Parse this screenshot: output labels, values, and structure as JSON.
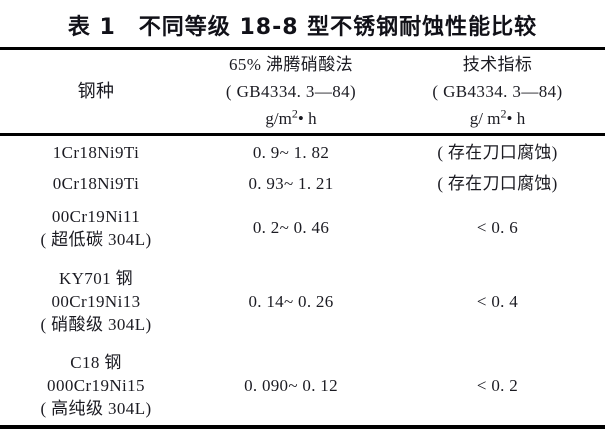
{
  "table": {
    "title": "表 1　不同等级 18-8 型不锈钢耐蚀性能比较",
    "header": {
      "steel_col": "钢种",
      "method_col": {
        "line1": "65% 沸腾硝酸法",
        "line2": "( GB4334. 3—84)",
        "unit_pre": "g/m",
        "unit_sup": "2",
        "unit_post": "• h"
      },
      "spec_col": {
        "line1": "技术指标",
        "line2": "( GB4334. 3—84)",
        "unit_pre": "g/ m",
        "unit_sup": "2",
        "unit_post": "• h"
      }
    },
    "rows": [
      {
        "name1": "1Cr18Ni9Ti",
        "value": "0. 9~ 1. 82",
        "spec": "( 存在刀口腐蚀)"
      },
      {
        "name1": "0Cr18Ni9Ti",
        "value": "0. 93~ 1. 21",
        "spec": "( 存在刀口腐蚀)"
      },
      {
        "name1": "00Cr19Ni11",
        "name2": "( 超低碳 304L)",
        "value": "0. 2~ 0. 46",
        "spec": "< 0. 6"
      },
      {
        "name1": "KY701 钢",
        "name2": "00Cr19Ni13",
        "name3": "( 硝酸级 304L)",
        "value": "0. 14~ 0. 26",
        "spec": "< 0. 4"
      },
      {
        "name1": "C18 钢",
        "name2": "000Cr19Ni15",
        "name3": "( 高纯级 304L)",
        "value": "0. 090~ 0. 12",
        "spec": "< 0. 2"
      }
    ]
  }
}
